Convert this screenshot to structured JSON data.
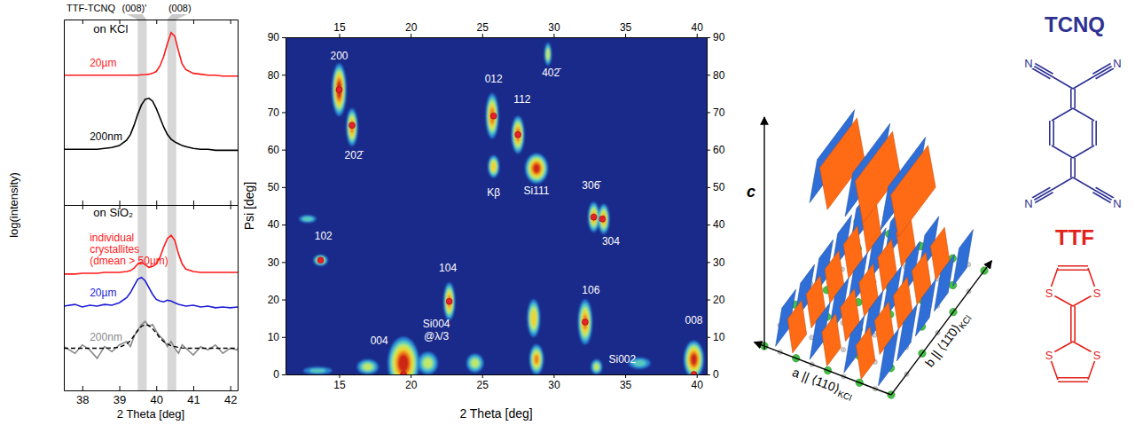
{
  "chart_data": [
    {
      "type": "line",
      "title": "TTF-TCNQ",
      "y_label": "log(intensity)",
      "x": [
        37.5,
        37.8,
        38.0,
        38.2,
        38.4,
        38.6,
        38.8,
        39.0,
        39.2,
        39.3,
        39.4,
        39.5,
        39.6,
        39.7,
        39.8,
        39.9,
        40.0,
        40.1,
        40.2,
        40.3,
        40.4,
        40.5,
        40.6,
        40.7,
        40.8,
        41.0,
        41.2,
        41.4,
        41.6,
        41.8,
        42.0,
        42.2
      ],
      "xlim": [
        37.5,
        42.2
      ],
      "xticks": [
        38,
        39,
        40,
        41,
        42
      ],
      "ylim": [
        0,
        10
      ],
      "yticks": [],
      "tick_labels": false,
      "bands": [
        {
          "value": 39.62,
          "label": "(008)'"
        },
        {
          "value": 40.42,
          "label": "(008)"
        }
      ],
      "annotations": [
        {
          "text": "on KCl",
          "x": 38.3,
          "y": 9.3
        }
      ],
      "series": [
        {
          "name": "20µm",
          "color": "#ff1a1a",
          "values": [
            7.0,
            7.0,
            7.0,
            7.0,
            7.0,
            7.0,
            7.0,
            7.0,
            7.0,
            7.0,
            7.0,
            7.0,
            7.02,
            7.03,
            7.05,
            7.1,
            7.2,
            7.5,
            8.0,
            8.7,
            9.3,
            9.1,
            8.3,
            7.6,
            7.3,
            7.1,
            7.05,
            7.0,
            7.0,
            6.95,
            6.95,
            6.95
          ]
        },
        {
          "name": "200nm",
          "color": "#000000",
          "values": [
            3.0,
            3.0,
            3.0,
            3.0,
            3.0,
            3.05,
            3.1,
            3.2,
            3.5,
            3.8,
            4.3,
            4.9,
            5.4,
            5.7,
            5.75,
            5.6,
            5.2,
            4.7,
            4.2,
            3.8,
            3.55,
            3.4,
            3.3,
            3.2,
            3.15,
            3.05,
            3.0,
            3.0,
            2.95,
            2.95,
            2.95,
            2.95
          ]
        }
      ]
    },
    {
      "type": "line",
      "x_label": "2 Theta [deg]",
      "x": [
        37.5,
        37.8,
        38.0,
        38.2,
        38.4,
        38.6,
        38.8,
        39.0,
        39.2,
        39.3,
        39.4,
        39.5,
        39.6,
        39.7,
        39.8,
        39.9,
        40.0,
        40.1,
        40.2,
        40.3,
        40.4,
        40.5,
        40.6,
        40.7,
        40.8,
        41.0,
        41.2,
        41.4,
        41.6,
        41.8,
        42.0,
        42.2
      ],
      "xlim": [
        37.5,
        42.2
      ],
      "xticks": [
        38,
        39,
        40,
        41,
        42
      ],
      "ylim": [
        0,
        11
      ],
      "yticks": [],
      "tick_labels": "x",
      "annotations": [
        {
          "text": "on SiO₂",
          "x": 38.3,
          "y": 10.3
        }
      ],
      "series": [
        {
          "name": "individual crystallites (dmean > 50µm)",
          "color": "#ff1a1a",
          "values": [
            6.9,
            6.9,
            6.95,
            6.95,
            6.95,
            7.0,
            7.0,
            7.0,
            7.05,
            7.1,
            7.25,
            7.5,
            7.6,
            7.45,
            7.3,
            7.35,
            7.5,
            7.9,
            8.5,
            9.0,
            9.2,
            8.9,
            8.1,
            7.5,
            7.2,
            7.05,
            7.0,
            7.0,
            7.0,
            7.0,
            7.0,
            7.0
          ]
        },
        {
          "name": "20µm",
          "color": "#1c1cd8",
          "values": [
            5.0,
            5.1,
            4.95,
            5.05,
            5.0,
            5.1,
            5.05,
            5.2,
            5.5,
            5.8,
            6.2,
            6.6,
            6.7,
            6.5,
            6.1,
            5.7,
            5.4,
            5.3,
            5.25,
            5.35,
            5.3,
            5.2,
            5.1,
            5.05,
            5.0,
            5.05,
            4.95,
            5.0,
            4.9,
            4.95,
            4.9,
            4.95
          ]
        },
        {
          "name": "200nm",
          "color": "#8a8a8a",
          "values": [
            2.6,
            2.2,
            2.7,
            2.4,
            1.9,
            2.6,
            2.3,
            2.7,
            2.9,
            2.6,
            3.2,
            3.6,
            3.9,
            4.1,
            3.8,
            3.9,
            3.5,
            3.2,
            3.0,
            2.6,
            2.9,
            2.5,
            2.2,
            2.7,
            2.5,
            2.1,
            2.6,
            2.4,
            2.7,
            2.2,
            2.5,
            2.4
          ]
        },
        {
          "color": "#000000",
          "line_style": "dashed",
          "values": [
            2.5,
            2.5,
            2.5,
            2.5,
            2.5,
            2.5,
            2.52,
            2.55,
            2.75,
            2.95,
            3.25,
            3.55,
            3.8,
            3.9,
            3.85,
            3.65,
            3.4,
            3.1,
            2.9,
            2.75,
            2.65,
            2.6,
            2.55,
            2.52,
            2.5,
            2.5,
            2.5,
            2.5,
            2.5,
            2.5,
            2.5,
            2.5
          ]
        }
      ]
    },
    {
      "type": "heatmap",
      "x_label": "2 Theta [deg]",
      "y_label": "Psi [deg]",
      "xlim": [
        11.25,
        40.7
      ],
      "xticks": [
        15,
        20,
        25,
        30,
        35,
        40
      ],
      "ylim": [
        0,
        90
      ],
      "yticks": [
        0,
        10,
        20,
        30,
        40,
        50,
        60,
        70,
        80,
        90
      ],
      "zlim": [
        0,
        1
      ],
      "spots": [
        {
          "x": 15.0,
          "y": 76,
          "value": 1.0,
          "width": 1.0,
          "height": 14
        },
        {
          "x": 15.9,
          "y": 66,
          "value": 0.8,
          "width": 0.8,
          "height": 10
        },
        {
          "x": 13.7,
          "y": 30.5,
          "value": 0.6,
          "width": 1.0,
          "height": 3
        },
        {
          "x": 12.8,
          "y": 41.5,
          "value": 0.4,
          "width": 1.2,
          "height": 2
        },
        {
          "x": 25.7,
          "y": 69,
          "value": 0.85,
          "width": 0.9,
          "height": 12
        },
        {
          "x": 25.8,
          "y": 55.5,
          "value": 0.7,
          "width": 0.8,
          "height": 6
        },
        {
          "x": 27.5,
          "y": 64,
          "value": 0.85,
          "width": 0.9,
          "height": 10
        },
        {
          "x": 29.6,
          "y": 85.5,
          "value": 0.55,
          "width": 0.5,
          "height": 6
        },
        {
          "x": 28.8,
          "y": 55,
          "value": 0.95,
          "width": 1.6,
          "height": 8
        },
        {
          "x": 32.8,
          "y": 42,
          "value": 0.75,
          "width": 0.8,
          "height": 8
        },
        {
          "x": 33.5,
          "y": 41.5,
          "value": 0.75,
          "width": 0.8,
          "height": 8
        },
        {
          "x": 22.7,
          "y": 19.5,
          "value": 0.8,
          "width": 0.8,
          "height": 10
        },
        {
          "x": 28.6,
          "y": 15,
          "value": 0.7,
          "width": 0.9,
          "height": 10
        },
        {
          "x": 32.2,
          "y": 14,
          "value": 0.8,
          "width": 1.0,
          "height": 12
        },
        {
          "x": 19.5,
          "y": 3,
          "value": 1.0,
          "width": 2.2,
          "height": 14
        },
        {
          "x": 21.2,
          "y": 3,
          "value": 0.5,
          "width": 1.4,
          "height": 6
        },
        {
          "x": 24.5,
          "y": 3,
          "value": 0.5,
          "width": 1.2,
          "height": 5
        },
        {
          "x": 28.8,
          "y": 4,
          "value": 0.75,
          "width": 1.0,
          "height": 8
        },
        {
          "x": 33.0,
          "y": 2,
          "value": 0.5,
          "width": 0.8,
          "height": 4
        },
        {
          "x": 39.8,
          "y": 4,
          "value": 0.95,
          "width": 1.4,
          "height": 10
        },
        {
          "x": 17.0,
          "y": 2,
          "value": 0.5,
          "width": 1.5,
          "height": 4
        },
        {
          "x": 36.0,
          "y": 3,
          "value": 0.35,
          "width": 1.5,
          "height": 3
        },
        {
          "x": 13.5,
          "y": 1,
          "value": 0.3,
          "width": 2.0,
          "height": 2
        }
      ],
      "reflections": [
        {
          "x": 15.0,
          "y": 76
        },
        {
          "x": 15.9,
          "y": 66.5
        },
        {
          "x": 13.7,
          "y": 30.5
        },
        {
          "x": 25.8,
          "y": 69
        },
        {
          "x": 27.5,
          "y": 64
        },
        {
          "x": 32.8,
          "y": 42
        },
        {
          "x": 33.4,
          "y": 41.5
        },
        {
          "x": 22.7,
          "y": 19.5
        },
        {
          "x": 32.2,
          "y": 14
        },
        {
          "x": 19.5,
          "y": 0
        },
        {
          "x": 39.8,
          "y": 0
        }
      ],
      "annotations": [
        {
          "text": "200",
          "x": 15.0,
          "y": 84
        },
        {
          "text": "202̄",
          "x": 16.0,
          "y": 57.5
        },
        {
          "text": "102",
          "x": 13.9,
          "y": 36
        },
        {
          "text": "012",
          "x": 25.8,
          "y": 78
        },
        {
          "text": "112",
          "x": 27.8,
          "y": 72.5
        },
        {
          "text": "402̄",
          "x": 29.8,
          "y": 79.5
        },
        {
          "text": "Kβ",
          "x": 25.8,
          "y": 47.5
        },
        {
          "text": "Si111",
          "x": 28.8,
          "y": 48
        },
        {
          "text": "306̄",
          "x": 32.6,
          "y": 49.5
        },
        {
          "text": "304",
          "x": 34.0,
          "y": 34.5
        },
        {
          "text": "104",
          "x": 22.6,
          "y": 27.5
        },
        {
          "text": "106",
          "x": 32.6,
          "y": 21.5
        },
        {
          "text": "004",
          "x": 17.8,
          "y": 8
        },
        {
          "text": "Si004",
          "x": 21.8,
          "y": 12.5
        },
        {
          "text": "@λ/3",
          "x": 21.8,
          "y": 9.3
        },
        {
          "text": "008",
          "x": 39.8,
          "y": 13.5
        },
        {
          "text": "Si002",
          "x": 34.8,
          "y": 3
        }
      ]
    }
  ],
  "diagram": {
    "axes": [
      {
        "label": "c"
      },
      {
        "label": "a || ⟨110⟩",
        "subscript": "KCl"
      },
      {
        "label": "b || ⟨11̄0⟩",
        "subscript": "KCl"
      }
    ],
    "molecules": [
      {
        "name": "TCNQ",
        "atom": "N",
        "color": "#2e3192",
        "plate_color": "#2f6ed6"
      },
      {
        "name": "TTF",
        "atom": "S",
        "color": "#e2231a",
        "plate_color": "#ff6a14"
      }
    ]
  }
}
